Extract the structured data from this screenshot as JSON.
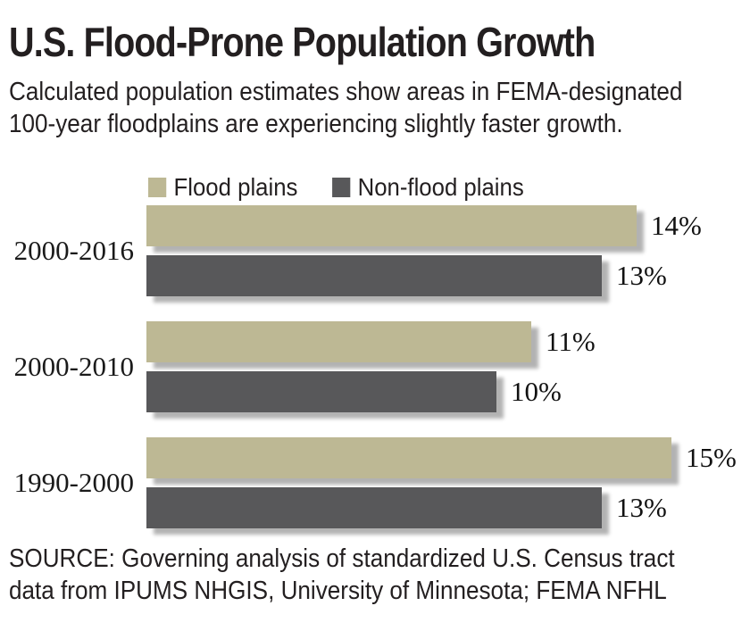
{
  "header": {
    "title": "U.S. Flood-Prone Population Growth",
    "subtitle_line1": "Calculated population estimates show areas in FEMA-designated",
    "subtitle_line2": "100-year floodplains are experiencing slightly faster growth."
  },
  "colors": {
    "flood_plains": "#bdb894",
    "non_flood_plains": "#58585a",
    "text": "#231f20",
    "background": "#ffffff"
  },
  "chart_data": {
    "type": "bar",
    "orientation": "horizontal",
    "title": "U.S. Flood-Prone Population Growth",
    "categories": [
      "2000-2016",
      "2000-2010",
      "1990-2000"
    ],
    "series": [
      {
        "name": "Flood plains",
        "color": "#bdb894",
        "values": [
          14,
          11,
          15
        ]
      },
      {
        "name": "Non-flood plains",
        "color": "#58585a",
        "values": [
          13,
          10,
          13
        ]
      }
    ],
    "value_suffix": "%",
    "xlim": [
      0,
      15.5
    ],
    "grid": false,
    "legend_position": "top",
    "data_labels": true
  },
  "source": {
    "line1": "SOURCE: Governing analysis of standardized U.S. Census tract",
    "line2": "data from IPUMS NHGIS, University of Minnesota; FEMA NFHL"
  }
}
